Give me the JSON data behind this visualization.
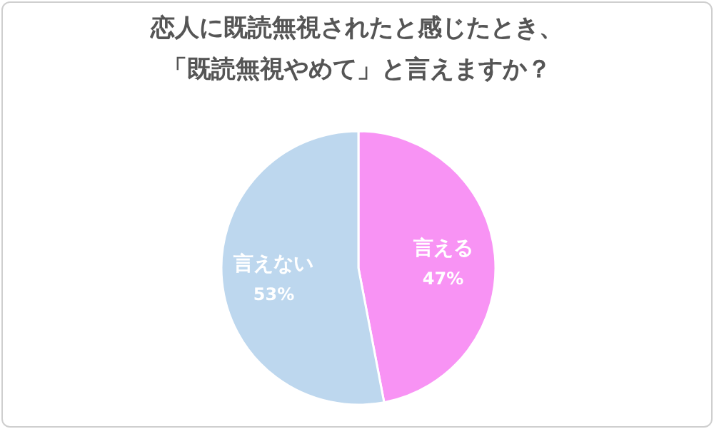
{
  "chart_data": {
    "type": "pie",
    "title": "恋人に既読無視されたと感じたとき、「既読無視やめて」と言えますか？",
    "categories": [
      "言える",
      "言えない"
    ],
    "values": [
      47,
      53
    ],
    "value_labels": [
      "47%",
      "53%"
    ],
    "colors": [
      "#f893f4",
      "#bdd7ee"
    ]
  }
}
